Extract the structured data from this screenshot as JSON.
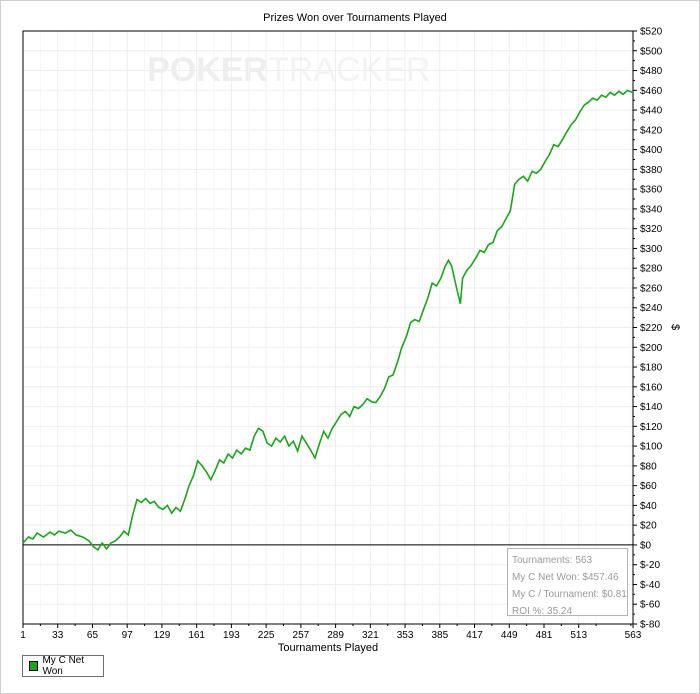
{
  "chart_data": {
    "type": "line",
    "title": "Prizes Won over Tournaments Played",
    "xlabel": "Tournaments Played",
    "ylabel": "$",
    "watermark": {
      "left": "POKER",
      "right": "TRACKER"
    },
    "xlim": [
      1,
      563
    ],
    "ylim": [
      -80,
      520
    ],
    "x_ticks": [
      "1",
      "33",
      "65",
      "97",
      "129",
      "161",
      "193",
      "225",
      "257",
      "289",
      "321",
      "353",
      "385",
      "417",
      "449",
      "481",
      "513",
      "563"
    ],
    "y_ticks": [
      "$520",
      "$500",
      "$480",
      "$460",
      "$440",
      "$420",
      "$400",
      "$380",
      "$360",
      "$340",
      "$320",
      "$300",
      "$280",
      "$260",
      "$240",
      "$220",
      "$200",
      "$180",
      "$160",
      "$140",
      "$120",
      "$100",
      "$80",
      "$60",
      "$40",
      "$20",
      "$0",
      "$-20",
      "$-40",
      "$-60",
      "$-80"
    ],
    "grid": true,
    "legend_position": "bottom-left",
    "series": [
      {
        "name": "My C Net Won",
        "color": "#1aa51a",
        "points": [
          [
            1,
            2
          ],
          [
            6,
            8
          ],
          [
            10,
            6
          ],
          [
            14,
            12
          ],
          [
            20,
            8
          ],
          [
            26,
            13
          ],
          [
            30,
            10
          ],
          [
            34,
            14
          ],
          [
            40,
            12
          ],
          [
            45,
            15
          ],
          [
            50,
            10
          ],
          [
            56,
            8
          ],
          [
            62,
            4
          ],
          [
            66,
            -2
          ],
          [
            70,
            -5
          ],
          [
            74,
            2
          ],
          [
            78,
            -4
          ],
          [
            82,
            2
          ],
          [
            86,
            4
          ],
          [
            90,
            8
          ],
          [
            94,
            14
          ],
          [
            98,
            10
          ],
          [
            102,
            30
          ],
          [
            106,
            46
          ],
          [
            110,
            43
          ],
          [
            114,
            47
          ],
          [
            118,
            42
          ],
          [
            122,
            44
          ],
          [
            126,
            38
          ],
          [
            130,
            36
          ],
          [
            134,
            40
          ],
          [
            138,
            32
          ],
          [
            142,
            38
          ],
          [
            146,
            34
          ],
          [
            150,
            46
          ],
          [
            154,
            60
          ],
          [
            158,
            70
          ],
          [
            162,
            85
          ],
          [
            166,
            80
          ],
          [
            170,
            74
          ],
          [
            174,
            66
          ],
          [
            178,
            75
          ],
          [
            182,
            86
          ],
          [
            186,
            83
          ],
          [
            190,
            92
          ],
          [
            194,
            88
          ],
          [
            198,
            96
          ],
          [
            202,
            92
          ],
          [
            206,
            98
          ],
          [
            210,
            96
          ],
          [
            214,
            110
          ],
          [
            218,
            118
          ],
          [
            222,
            115
          ],
          [
            226,
            103
          ],
          [
            230,
            100
          ],
          [
            234,
            108
          ],
          [
            238,
            104
          ],
          [
            242,
            110
          ],
          [
            246,
            100
          ],
          [
            250,
            105
          ],
          [
            254,
            95
          ],
          [
            258,
            110
          ],
          [
            262,
            103
          ],
          [
            266,
            96
          ],
          [
            270,
            88
          ],
          [
            274,
            102
          ],
          [
            278,
            115
          ],
          [
            282,
            108
          ],
          [
            286,
            118
          ],
          [
            290,
            125
          ],
          [
            294,
            132
          ],
          [
            298,
            135
          ],
          [
            302,
            130
          ],
          [
            306,
            140
          ],
          [
            310,
            138
          ],
          [
            314,
            142
          ],
          [
            318,
            148
          ],
          [
            322,
            145
          ],
          [
            326,
            144
          ],
          [
            330,
            150
          ],
          [
            334,
            158
          ],
          [
            338,
            170
          ],
          [
            342,
            172
          ],
          [
            346,
            185
          ],
          [
            350,
            200
          ],
          [
            354,
            210
          ],
          [
            358,
            225
          ],
          [
            362,
            228
          ],
          [
            366,
            226
          ],
          [
            370,
            238
          ],
          [
            374,
            250
          ],
          [
            378,
            265
          ],
          [
            382,
            262
          ],
          [
            386,
            270
          ],
          [
            390,
            282
          ],
          [
            393,
            288
          ],
          [
            396,
            282
          ],
          [
            400,
            262
          ],
          [
            404,
            244
          ],
          [
            406,
            270
          ],
          [
            410,
            278
          ],
          [
            414,
            283
          ],
          [
            418,
            290
          ],
          [
            422,
            298
          ],
          [
            426,
            296
          ],
          [
            430,
            304
          ],
          [
            434,
            306
          ],
          [
            438,
            318
          ],
          [
            442,
            322
          ],
          [
            446,
            330
          ],
          [
            450,
            338
          ],
          [
            454,
            365
          ],
          [
            458,
            370
          ],
          [
            462,
            373
          ],
          [
            466,
            368
          ],
          [
            470,
            378
          ],
          [
            474,
            376
          ],
          [
            478,
            380
          ],
          [
            482,
            388
          ],
          [
            486,
            395
          ],
          [
            490,
            405
          ],
          [
            494,
            403
          ],
          [
            498,
            410
          ],
          [
            502,
            418
          ],
          [
            506,
            425
          ],
          [
            510,
            430
          ],
          [
            514,
            438
          ],
          [
            518,
            445
          ],
          [
            522,
            448
          ],
          [
            526,
            452
          ],
          [
            530,
            450
          ],
          [
            534,
            455
          ],
          [
            538,
            453
          ],
          [
            542,
            458
          ],
          [
            546,
            455
          ],
          [
            550,
            459
          ],
          [
            554,
            456
          ],
          [
            558,
            460
          ],
          [
            563,
            457.46
          ]
        ]
      }
    ],
    "stats_box": {
      "tournaments": "Tournaments: 563",
      "net_won": "My C Net Won: $457.46",
      "per_tournament": "My C / Tournament: $0.81",
      "roi": "ROI %: 35.24"
    }
  }
}
